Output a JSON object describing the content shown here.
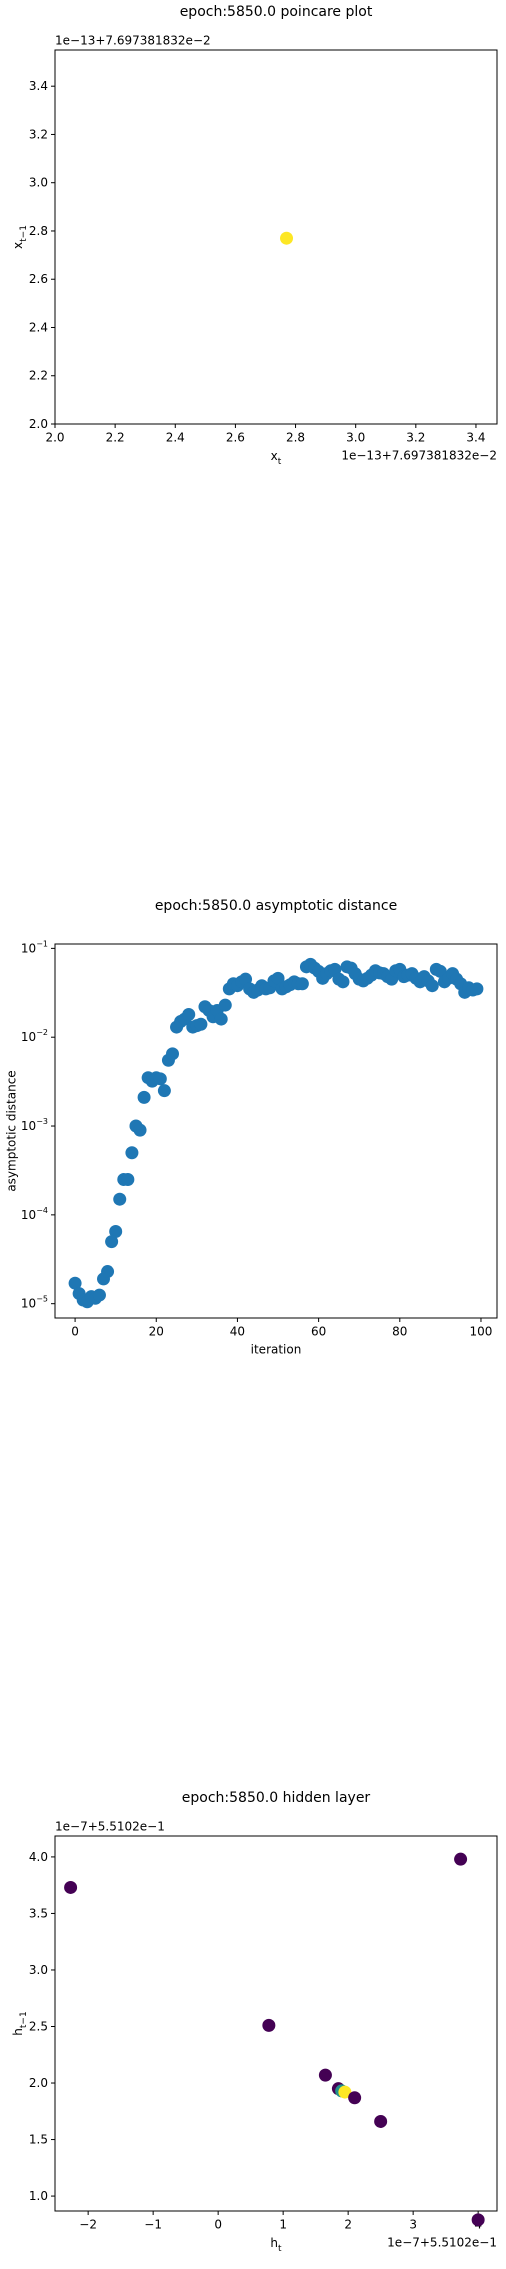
{
  "chart_data": [
    {
      "type": "scatter",
      "title": "epoch:5850.0 poincare plot",
      "xlabel": {
        "text": "x",
        "sub": "t"
      },
      "ylabel": {
        "text": "x",
        "sub": "t−1"
      },
      "x_offset": "1e−13+7.697381832e−2",
      "y_offset": "1e−13+7.697381832e−2",
      "xlim": [
        2.0,
        3.47
      ],
      "ylim": [
        2.0,
        3.55
      ],
      "xticks": [
        {
          "value": 2.0,
          "label": "2.0"
        },
        {
          "value": 2.2,
          "label": "2.2"
        },
        {
          "value": 2.4,
          "label": "2.4"
        },
        {
          "value": 2.6,
          "label": "2.6"
        },
        {
          "value": 2.8,
          "label": "2.8"
        },
        {
          "value": 3.0,
          "label": "3.0"
        },
        {
          "value": 3.2,
          "label": "3.2"
        },
        {
          "value": 3.4,
          "label": "3.4"
        }
      ],
      "yticks": [
        {
          "value": 2.0,
          "label": "2.0"
        },
        {
          "value": 2.2,
          "label": "2.2"
        },
        {
          "value": 2.4,
          "label": "2.4"
        },
        {
          "value": 2.6,
          "label": "2.6"
        },
        {
          "value": 2.8,
          "label": "2.8"
        },
        {
          "value": 3.0,
          "label": "3.0"
        },
        {
          "value": 3.2,
          "label": "3.2"
        },
        {
          "value": 3.4,
          "label": "3.4"
        }
      ],
      "series": [
        {
          "x": [
            2.77
          ],
          "values": [
            2.77
          ],
          "color": "#fde725"
        }
      ]
    },
    {
      "type": "scatter",
      "title": "epoch:5850.0 asymptotic distance",
      "xlabel": "iteration",
      "ylabel": "asymptotic distance",
      "log_y": true,
      "xlim": [
        -4.95,
        103.95
      ],
      "ylim": [
        6.9e-06,
        0.112
      ],
      "xticks": [
        0,
        20,
        40,
        60,
        80,
        100
      ],
      "yticks": [
        {
          "value": 1e-05,
          "label": "10",
          "exponent": "−5"
        },
        {
          "value": 0.0001,
          "label": "10",
          "exponent": "−4"
        },
        {
          "value": 0.001,
          "label": "10",
          "exponent": "−3"
        },
        {
          "value": 0.01,
          "label": "10",
          "exponent": "−2"
        },
        {
          "value": 0.1,
          "label": "10",
          "exponent": "−1"
        }
      ],
      "series": [
        {
          "color": "#1f77b4",
          "x": [
            0,
            1,
            2,
            3,
            4,
            5,
            6,
            7,
            8,
            9,
            10,
            11,
            12,
            13,
            14,
            15,
            16,
            17,
            18,
            19,
            20,
            21,
            22,
            23,
            24,
            25,
            26,
            27,
            28,
            29,
            30,
            31,
            32,
            33,
            34,
            35,
            36,
            37,
            38,
            39,
            40,
            41,
            42,
            43,
            44,
            45,
            46,
            47,
            48,
            49,
            50,
            51,
            52,
            53,
            54,
            55,
            56,
            57,
            58,
            59,
            60,
            61,
            62,
            63,
            64,
            65,
            66,
            67,
            68,
            69,
            70,
            71,
            72,
            73,
            74,
            75,
            76,
            77,
            78,
            79,
            80,
            81,
            82,
            83,
            84,
            85,
            86,
            87,
            88,
            89,
            90,
            91,
            92,
            93,
            94,
            95,
            96,
            97,
            98,
            99
          ],
          "values": [
            1.7e-05,
            1.3e-05,
            1.1e-05,
            1.05e-05,
            1.2e-05,
            1.15e-05,
            1.25e-05,
            1.9e-05,
            2.3e-05,
            5e-05,
            6.5e-05,
            0.00015,
            0.00025,
            0.00025,
            0.0005,
            0.001,
            0.0009,
            0.0021,
            0.0035,
            0.0032,
            0.0035,
            0.0034,
            0.0025,
            0.0055,
            0.0065,
            0.013,
            0.015,
            0.016,
            0.018,
            0.013,
            0.0135,
            0.014,
            0.022,
            0.02,
            0.017,
            0.02,
            0.016,
            0.023,
            0.035,
            0.04,
            0.038,
            0.042,
            0.045,
            0.035,
            0.032,
            0.034,
            0.038,
            0.035,
            0.036,
            0.043,
            0.046,
            0.035,
            0.037,
            0.039,
            0.042,
            0.04,
            0.04,
            0.062,
            0.066,
            0.06,
            0.055,
            0.046,
            0.052,
            0.056,
            0.058,
            0.045,
            0.042,
            0.062,
            0.06,
            0.052,
            0.045,
            0.043,
            0.046,
            0.05,
            0.056,
            0.053,
            0.052,
            0.048,
            0.045,
            0.056,
            0.058,
            0.048,
            0.05,
            0.052,
            0.046,
            0.042,
            0.048,
            0.043,
            0.038,
            0.058,
            0.055,
            0.042,
            0.046,
            0.052,
            0.045,
            0.04,
            0.032,
            0.036,
            0.034,
            0.035
          ]
        }
      ]
    },
    {
      "type": "scatter",
      "title": "epoch:5850.0 hidden layer",
      "xlabel": {
        "text": "h",
        "sub": "t"
      },
      "ylabel": {
        "text": "h",
        "sub": "t−1"
      },
      "x_offset": "1e−7+5.5102e−1",
      "y_offset": "1e−7+5.5102e−1",
      "xlim": [
        -2.51,
        4.29
      ],
      "ylim": [
        0.868,
        4.185
      ],
      "xticks": [
        {
          "value": -2,
          "label": "−2"
        },
        {
          "value": -1,
          "label": "−1"
        },
        0,
        1,
        2,
        3,
        4
      ],
      "yticks": [
        {
          "value": 1.0,
          "label": "1.0"
        },
        {
          "value": 1.5,
          "label": "1.5"
        },
        {
          "value": 2.0,
          "label": "2.0"
        },
        {
          "value": 2.5,
          "label": "2.5"
        },
        {
          "value": 3.0,
          "label": "3.0"
        },
        {
          "value": 3.5,
          "label": "3.5"
        },
        {
          "value": 4.0,
          "label": "4.0"
        }
      ],
      "series": [
        {
          "x": [
            -2.27,
            3.73,
            0.78,
            1.65,
            1.85,
            1.9,
            1.95,
            2.1,
            2.5,
            4.0
          ],
          "values": [
            3.73,
            3.98,
            2.51,
            2.07,
            1.95,
            1.93,
            1.92,
            1.87,
            1.66,
            0.79
          ],
          "colors": [
            "#440154",
            "#440154",
            "#440154",
            "#440154",
            "#440154",
            "#21918c",
            "#fde725",
            "#440154",
            "#440154",
            "#440154"
          ]
        }
      ]
    }
  ]
}
